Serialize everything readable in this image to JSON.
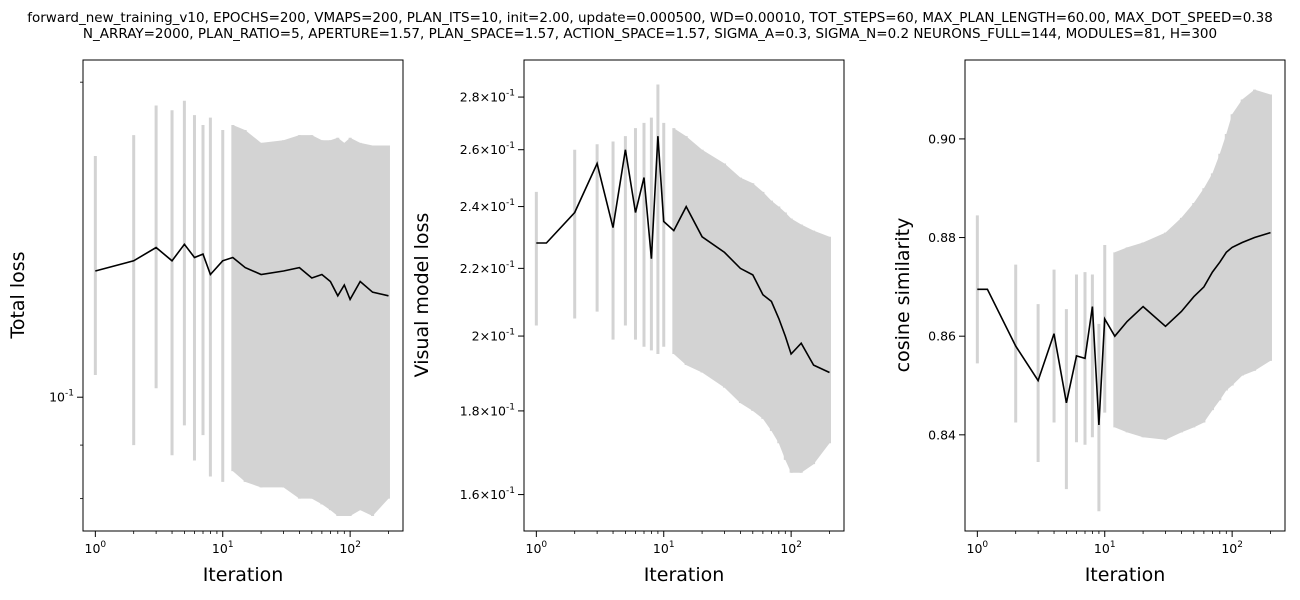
{
  "title_lines": [
    "forward_new_training_v10, EPOCHS=200, VMAPS=200, PLAN_ITS=10, init=2.00, update=0.000500, WD=0.00010, TOT_STEPS=60, MAX_PLAN_LENGTH=60.00, MAX_DOT_SPEED=0.38",
    "N_ARRAY=2000, PLAN_RATIO=5, APERTURE=1.57, PLAN_SPACE=1.57, ACTION_SPACE=1.57, SIGMA_A=0.3, SIGMA_N=0.2 NEURONS_FULL=144, MODULES=81, H=300"
  ],
  "chart_data": [
    {
      "type": "line",
      "title": "",
      "xlabel": "Iteration",
      "ylabel": "Total loss",
      "xscale": "log",
      "yscale": "log",
      "xlim": [
        0.8,
        260
      ],
      "ylim": [
        0.0745,
        0.21
      ],
      "x_ticks": [
        {
          "value": 1,
          "label": "10^0"
        },
        {
          "value": 10,
          "label": "10^1"
        },
        {
          "value": 100,
          "label": "10^2"
        }
      ],
      "y_ticks": [
        {
          "value": 0.1,
          "label": "10^-1"
        }
      ],
      "series": [
        {
          "style": "mean line, black",
          "x": [
            1,
            2,
            3,
            4,
            5,
            6,
            7,
            8,
            10,
            12,
            15,
            20,
            30,
            40,
            50,
            60,
            70,
            80,
            90,
            100,
            120,
            150,
            200
          ],
          "y": [
            0.132,
            0.135,
            0.139,
            0.135,
            0.14,
            0.136,
            0.137,
            0.131,
            0.135,
            0.136,
            0.133,
            0.131,
            0.132,
            0.133,
            0.13,
            0.131,
            0.129,
            0.125,
            0.128,
            0.124,
            0.129,
            0.126,
            0.125
          ]
        },
        {
          "style": "spread band, light gray vertical bars",
          "x": [
            1,
            2,
            3,
            4,
            5,
            6,
            7,
            8,
            10,
            12,
            15,
            20,
            30,
            40,
            50,
            60,
            70,
            80,
            90,
            100,
            120,
            150,
            200
          ],
          "low": [
            0.105,
            0.09,
            0.102,
            0.088,
            0.094,
            0.087,
            0.092,
            0.084,
            0.083,
            0.085,
            0.083,
            0.082,
            0.082,
            0.08,
            0.08,
            0.079,
            0.078,
            0.077,
            0.077,
            0.077,
            0.078,
            0.077,
            0.08
          ],
          "high": [
            0.17,
            0.178,
            0.19,
            0.188,
            0.192,
            0.186,
            0.182,
            0.185,
            0.18,
            0.182,
            0.18,
            0.175,
            0.176,
            0.178,
            0.178,
            0.176,
            0.176,
            0.177,
            0.175,
            0.177,
            0.175,
            0.174,
            0.174
          ]
        }
      ]
    },
    {
      "type": "line",
      "title": "",
      "xlabel": "Iteration",
      "ylabel": "Visual model loss",
      "xscale": "log",
      "yscale": "log",
      "xlim": [
        0.8,
        260
      ],
      "ylim": [
        0.152,
        0.295
      ],
      "x_ticks": [
        {
          "value": 1,
          "label": "10^0"
        },
        {
          "value": 10,
          "label": "10^1"
        },
        {
          "value": 100,
          "label": "10^2"
        }
      ],
      "y_ticks": [
        {
          "value": 0.16,
          "label": "1.6×10^-1"
        },
        {
          "value": 0.18,
          "label": "1.8×10^-1"
        },
        {
          "value": 0.2,
          "label": "2×10^-1"
        },
        {
          "value": 0.22,
          "label": "2.2×10^-1"
        },
        {
          "value": 0.24,
          "label": "2.4×10^-1"
        },
        {
          "value": 0.26,
          "label": "2.6×10^-1"
        },
        {
          "value": 0.28,
          "label": "2.8×10^-1"
        }
      ],
      "series": [
        {
          "style": "mean line, black",
          "x": [
            1,
            1.2,
            2,
            3,
            4,
            5,
            6,
            7,
            8,
            9,
            10,
            12,
            15,
            20,
            30,
            40,
            50,
            60,
            70,
            80,
            90,
            100,
            120,
            150,
            200
          ],
          "y": [
            0.228,
            0.228,
            0.238,
            0.255,
            0.233,
            0.26,
            0.238,
            0.25,
            0.223,
            0.265,
            0.235,
            0.232,
            0.24,
            0.23,
            0.225,
            0.22,
            0.218,
            0.212,
            0.21,
            0.205,
            0.2,
            0.195,
            0.198,
            0.192,
            0.19
          ]
        },
        {
          "style": "spread band, light gray vertical bars",
          "x": [
            1,
            2,
            3,
            4,
            5,
            6,
            7,
            8,
            9,
            10,
            12,
            15,
            20,
            30,
            40,
            50,
            60,
            70,
            80,
            90,
            100,
            120,
            150,
            200
          ],
          "low": [
            0.203,
            0.205,
            0.207,
            0.199,
            0.203,
            0.199,
            0.197,
            0.196,
            0.195,
            0.197,
            0.195,
            0.192,
            0.19,
            0.186,
            0.182,
            0.18,
            0.178,
            0.175,
            0.172,
            0.168,
            0.165,
            0.165,
            0.167,
            0.172
          ],
          "high": [
            0.245,
            0.26,
            0.262,
            0.263,
            0.265,
            0.268,
            0.27,
            0.272,
            0.285,
            0.27,
            0.268,
            0.265,
            0.26,
            0.255,
            0.25,
            0.248,
            0.245,
            0.242,
            0.24,
            0.238,
            0.236,
            0.234,
            0.232,
            0.23
          ]
        }
      ]
    },
    {
      "type": "line",
      "title": "",
      "xlabel": "Iteration",
      "ylabel": "cosine similarity",
      "xscale": "log",
      "yscale": "linear",
      "xlim": [
        0.8,
        260
      ],
      "ylim": [
        0.8205,
        0.916
      ],
      "x_ticks": [
        {
          "value": 1,
          "label": "10^0"
        },
        {
          "value": 10,
          "label": "10^1"
        },
        {
          "value": 100,
          "label": "10^2"
        }
      ],
      "y_ticks": [
        {
          "value": 0.84,
          "label": "0.84"
        },
        {
          "value": 0.86,
          "label": "0.86"
        },
        {
          "value": 0.88,
          "label": "0.88"
        },
        {
          "value": 0.9,
          "label": "0.90"
        }
      ],
      "series": [
        {
          "style": "mean line, black",
          "x": [
            1,
            1.2,
            2,
            3,
            4,
            5,
            6,
            7,
            8,
            9,
            10,
            12,
            15,
            20,
            30,
            40,
            50,
            60,
            70,
            80,
            90,
            100,
            120,
            150,
            200
          ],
          "y": [
            0.8695,
            0.8695,
            0.858,
            0.851,
            0.8605,
            0.8465,
            0.856,
            0.8555,
            0.866,
            0.842,
            0.8635,
            0.86,
            0.863,
            0.866,
            0.862,
            0.865,
            0.868,
            0.87,
            0.873,
            0.875,
            0.877,
            0.878,
            0.879,
            0.88,
            0.881
          ]
        },
        {
          "style": "spread band, light gray vertical bars",
          "x": [
            1,
            2,
            3,
            4,
            5,
            6,
            7,
            8,
            9,
            10,
            12,
            15,
            20,
            30,
            40,
            50,
            60,
            70,
            80,
            90,
            100,
            120,
            150,
            200
          ],
          "low": [
            0.8545,
            0.8425,
            0.8345,
            0.8425,
            0.829,
            0.8385,
            0.838,
            0.8395,
            0.8245,
            0.8445,
            0.8415,
            0.8405,
            0.8395,
            0.839,
            0.8405,
            0.8415,
            0.8425,
            0.845,
            0.847,
            0.849,
            0.85,
            0.852,
            0.853,
            0.855
          ],
          "high": [
            0.8845,
            0.8745,
            0.8665,
            0.8735,
            0.8655,
            0.8725,
            0.873,
            0.8725,
            0.8625,
            0.8785,
            0.877,
            0.878,
            0.879,
            0.881,
            0.884,
            0.887,
            0.89,
            0.893,
            0.897,
            0.901,
            0.905,
            0.908,
            0.91,
            0.909
          ]
        }
      ]
    }
  ]
}
